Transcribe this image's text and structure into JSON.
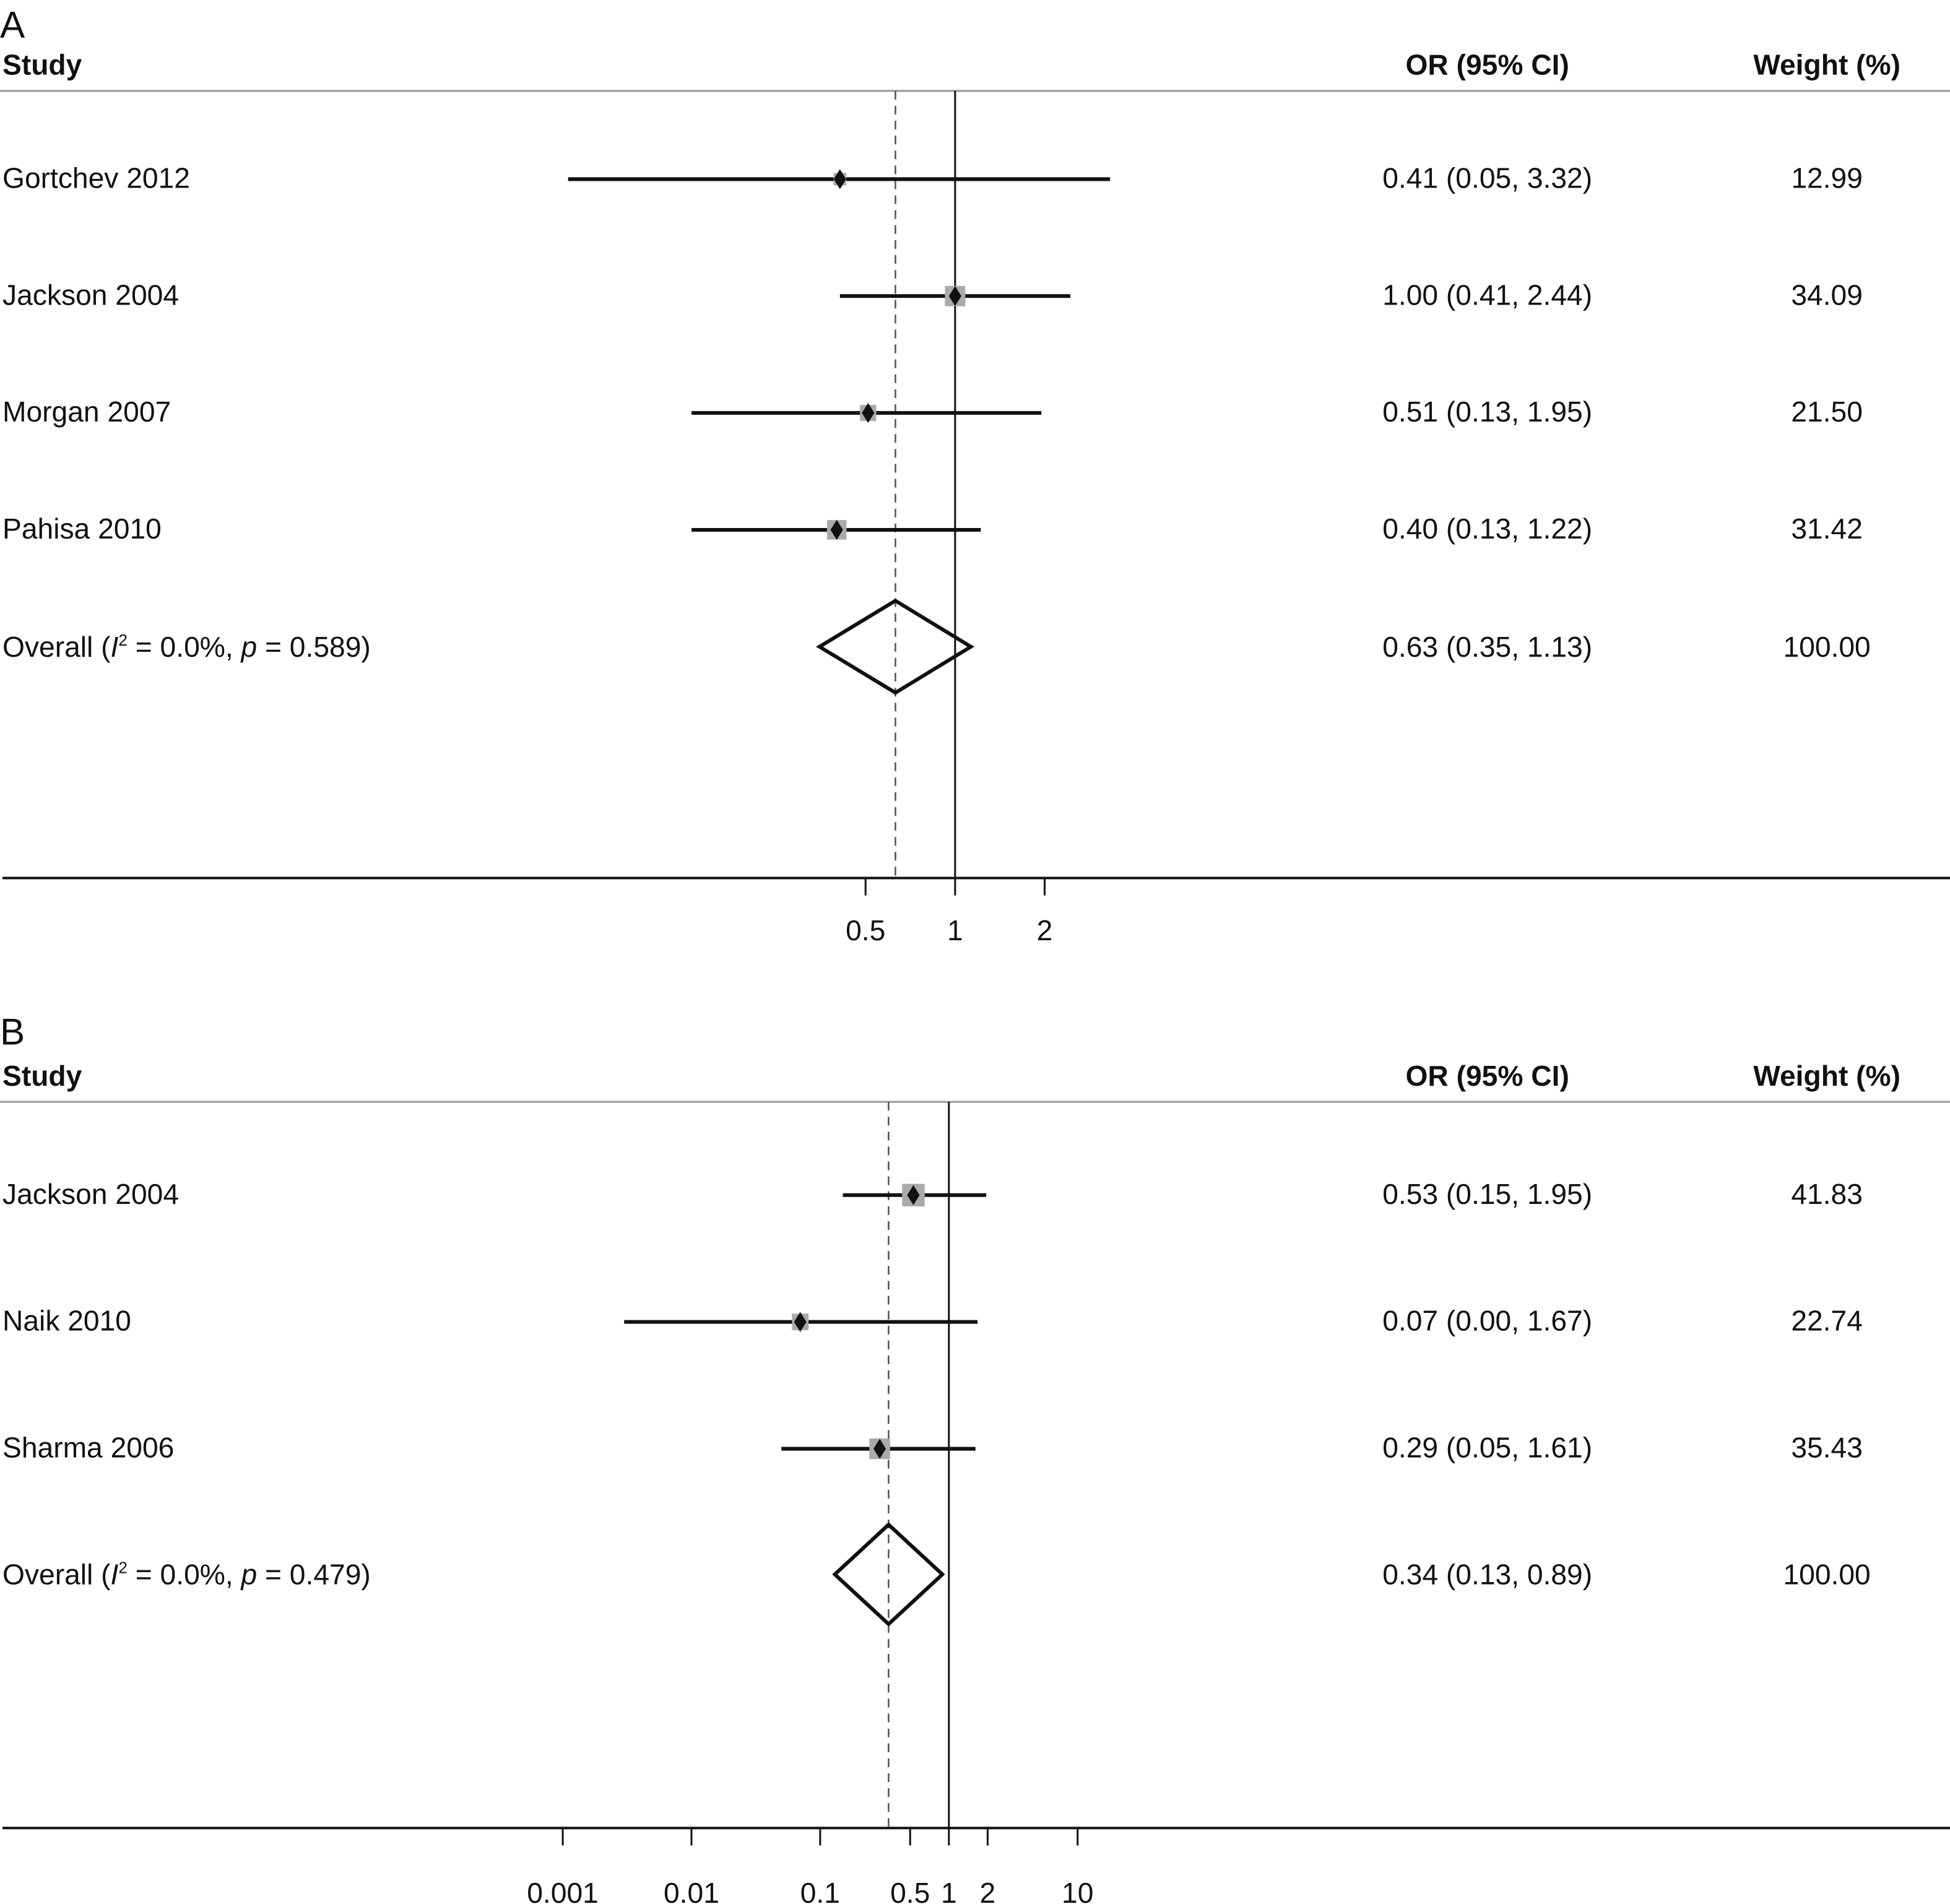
{
  "chart_data": [
    {
      "type": "forest",
      "panel_label": "A",
      "headers": {
        "study": "Study",
        "or": "OR (95% CI)",
        "weight": "Weight (%)"
      },
      "x_scale": "log",
      "xticks": [
        0.5,
        1,
        2
      ],
      "xtick_labels": [
        "0.5",
        "1",
        "2"
      ],
      "null_line": 1,
      "studies": [
        {
          "name": "Gortchev 2012",
          "or": 0.41,
          "lo": 0.05,
          "hi": 3.32,
          "or_text": "0.41 (0.05, 3.32)",
          "weight": 12.99,
          "weight_text": "12.99"
        },
        {
          "name": "Jackson 2004",
          "or": 1.0,
          "lo": 0.41,
          "hi": 2.44,
          "or_text": "1.00 (0.41, 2.44)",
          "weight": 34.09,
          "weight_text": "34.09"
        },
        {
          "name": "Morgan 2007",
          "or": 0.51,
          "lo": 0.13,
          "hi": 1.95,
          "or_text": "0.51 (0.13, 1.95)",
          "weight": 21.5,
          "weight_text": "21.50"
        },
        {
          "name": "Pahisa 2010",
          "or": 0.4,
          "lo": 0.13,
          "hi": 1.22,
          "or_text": "0.40 (0.13, 1.22)",
          "weight": 31.42,
          "weight_text": "31.42"
        }
      ],
      "overall": {
        "label_parts": [
          {
            "text": "Overall (",
            "italic": false,
            "sup": false
          },
          {
            "text": "I",
            "italic": true,
            "sup": false
          },
          {
            "text": "2",
            "italic": false,
            "sup": true
          },
          {
            "text": " = 0.0%, ",
            "italic": false,
            "sup": false
          },
          {
            "text": "p",
            "italic": true,
            "sup": false
          },
          {
            "text": " = 0.589)",
            "italic": false,
            "sup": false
          }
        ],
        "or": 0.63,
        "lo": 0.35,
        "hi": 1.13,
        "or_text": "0.63 (0.35, 1.13)",
        "weight_text": "100.00"
      }
    },
    {
      "type": "forest",
      "panel_label": "B",
      "headers": {
        "study": "Study",
        "or": "OR (95% CI)",
        "weight": "Weight (%)"
      },
      "x_scale": "log",
      "xticks": [
        0.001,
        0.01,
        0.1,
        0.5,
        1,
        2,
        10
      ],
      "xtick_labels": [
        "0.001",
        "0.01",
        "0.1",
        "0.5",
        "1",
        "2",
        "10"
      ],
      "null_line": 1,
      "studies": [
        {
          "name": "Jackson 2004",
          "or": 0.53,
          "lo": 0.15,
          "hi": 1.95,
          "or_text": "0.53 (0.15, 1.95)",
          "weight": 41.83,
          "weight_text": "41.83"
        },
        {
          "name": "Naik 2010",
          "or": 0.07,
          "lo": 0.003,
          "hi": 1.67,
          "or_text": "0.07 (0.00, 1.67)",
          "weight": 22.74,
          "weight_text": "22.74"
        },
        {
          "name": "Sharma 2006",
          "or": 0.29,
          "lo": 0.05,
          "hi": 1.61,
          "or_text": "0.29 (0.05, 1.61)",
          "weight": 35.43,
          "weight_text": "35.43"
        }
      ],
      "overall": {
        "label_parts": [
          {
            "text": "Overall (",
            "italic": false,
            "sup": false
          },
          {
            "text": "I",
            "italic": true,
            "sup": false
          },
          {
            "text": "2",
            "italic": false,
            "sup": true
          },
          {
            "text": " = 0.0%, ",
            "italic": false,
            "sup": false
          },
          {
            "text": "p",
            "italic": true,
            "sup": false
          },
          {
            "text": " = 0.479)",
            "italic": false,
            "sup": false
          }
        ],
        "or": 0.34,
        "lo": 0.13,
        "hi": 0.89,
        "or_text": "0.34 (0.13, 0.89)",
        "weight_text": "100.00"
      }
    }
  ]
}
